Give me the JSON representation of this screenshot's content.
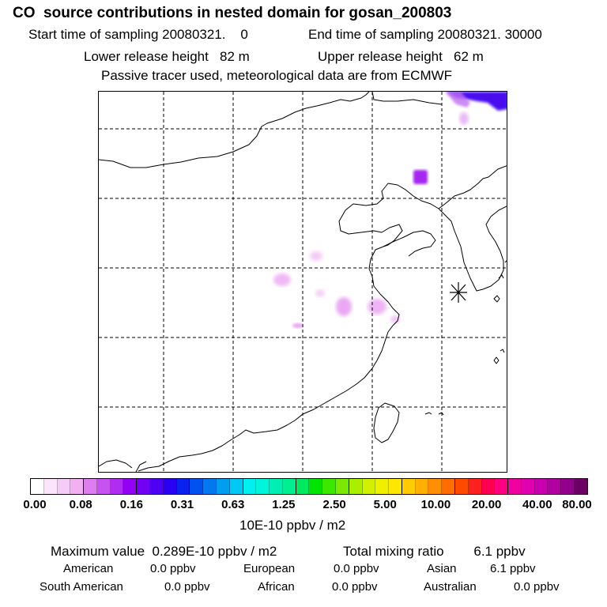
{
  "header": {
    "title": "CO  source contributions in nested domain for gosan_200803",
    "start_label": "Start time of sampling",
    "start_value": "20080321.    0",
    "end_label": "End time of sampling",
    "end_value": "20080321. 30000",
    "lower_label": "Lower release height",
    "lower_value": "82 m",
    "upper_label": "Upper release height",
    "upper_value": "62 m",
    "tracer_note": "Passive tracer used, meteorological data are from ECMWF"
  },
  "legend": {
    "ticks": [
      "0.00",
      "0.08",
      "0.16",
      "0.31",
      "0.63",
      "1.25",
      "2.50",
      "5.00",
      "10.00",
      "20.00",
      "40.00",
      "80.00"
    ],
    "unit": "10E-10 ppbv / m2",
    "colors": [
      "#ffffff",
      "#fbe5fb",
      "#f7cbf7",
      "#f2b0f3",
      "#dd7df0",
      "#c653ef",
      "#b02cf0",
      "#9400f5",
      "#7100f4",
      "#4d00f2",
      "#2a00f4",
      "#0a22f0",
      "#0051f0",
      "#0078f0",
      "#009ef0",
      "#00c8f2",
      "#00f0f0",
      "#00f5d8",
      "#00f0b4",
      "#00f090",
      "#00ea60",
      "#00e400",
      "#3ce800",
      "#7ae800",
      "#acee00",
      "#d2f000",
      "#eef000",
      "#ffe800",
      "#ffcc00",
      "#ffb000",
      "#ff8f00",
      "#ff6c00",
      "#ff4a00",
      "#ff2020",
      "#ff0050",
      "#ff0080",
      "#f000a0",
      "#e000b0",
      "#c800b0",
      "#b000a0",
      "#90008a",
      "#6c0066"
    ]
  },
  "summary": {
    "max_label": "Maximum value",
    "max_value": "0.289E-10 ppbv / m2",
    "total_label": "Total mixing ratio",
    "total_value": "6.1 ppbv"
  },
  "regions": [
    {
      "name": "American",
      "value": "0.0 ppbv"
    },
    {
      "name": "European",
      "value": "0.0 ppbv"
    },
    {
      "name": "Asian",
      "value": "6.1 ppbv"
    },
    {
      "name": "South American",
      "value": "0.0 ppbv"
    },
    {
      "name": "African",
      "value": "0.0 ppbv"
    },
    {
      "name": "Australian",
      "value": "0.0 ppbv"
    }
  ]
}
